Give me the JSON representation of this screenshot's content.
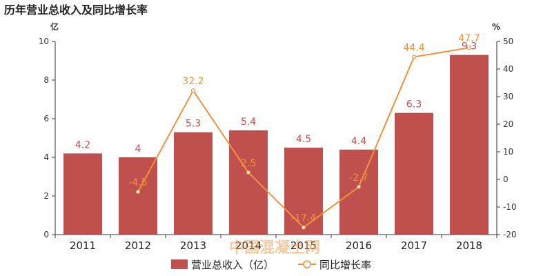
{
  "chart_data": {
    "type": "bar",
    "title": "历年营业总收入及同比增长率",
    "categories": [
      "2011",
      "2012",
      "2013",
      "2014",
      "2015",
      "2016",
      "2017",
      "2018"
    ],
    "series": [
      {
        "name": "营业总收入（亿）",
        "type": "bar",
        "axis": "left",
        "values": [
          4.2,
          4,
          5.3,
          5.4,
          4.5,
          4.4,
          6.3,
          9.3
        ],
        "labels": [
          "4.2",
          "4",
          "5.3",
          "5.4",
          "4.5",
          "4.4",
          "6.3",
          "9.3"
        ]
      },
      {
        "name": "同比增长率",
        "type": "line",
        "axis": "right",
        "values": [
          null,
          -4.5,
          32.2,
          2.5,
          -17.4,
          -2.7,
          44.4,
          47.7
        ],
        "labels": [
          "",
          "-4.5",
          "32.2",
          "2.5",
          "-17.4",
          "-2.7",
          "44.4",
          "47.7"
        ]
      }
    ],
    "y_left": {
      "unit": "亿",
      "ylim": [
        0,
        10
      ],
      "ticks": [
        "0",
        "2",
        "4",
        "6",
        "8",
        "10"
      ]
    },
    "y_right": {
      "unit": "%",
      "ylim": [
        -20,
        50
      ],
      "ticks": [
        "-20",
        "-10",
        "0",
        "10",
        "20",
        "30",
        "40",
        "50"
      ]
    },
    "grid": false,
    "legend": "bottom",
    "colors": {
      "bar": "#c0504d",
      "line": "#f0923b",
      "bar_label": "#c0504d",
      "line_label": "#f0923b"
    }
  },
  "watermark": "中国混凝土网"
}
